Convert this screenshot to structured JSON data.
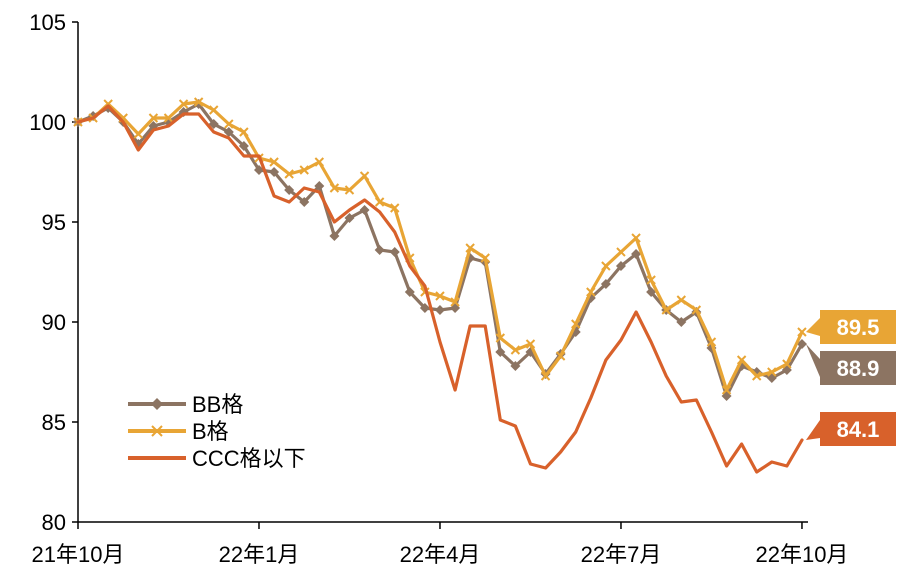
{
  "chart_data": {
    "type": "line",
    "title": "",
    "xlabel": "",
    "ylabel": "",
    "ylim": [
      80,
      105
    ],
    "yticks": [
      80,
      85,
      90,
      95,
      100,
      105
    ],
    "x_tick_labels": [
      "21年10月",
      "22年1月",
      "22年4月",
      "22年7月",
      "22年10月"
    ],
    "x_tick_pos": [
      0,
      3,
      6,
      9,
      12
    ],
    "x_range": [
      0,
      12.1
    ],
    "grid": false,
    "legend_placement": "bottom-left",
    "series": [
      {
        "name": "BB格",
        "color": "#8C7462",
        "marker": "diamond",
        "end_label": "88.9",
        "x": [
          0,
          0.25,
          0.5,
          0.75,
          1.0,
          1.25,
          1.5,
          1.75,
          2.0,
          2.25,
          2.5,
          2.75,
          3.0,
          3.25,
          3.5,
          3.75,
          4.0,
          4.25,
          4.5,
          4.75,
          5.0,
          5.25,
          5.5,
          5.75,
          6.0,
          6.25,
          6.5,
          6.75,
          7.0,
          7.25,
          7.5,
          7.75,
          8.0,
          8.25,
          8.5,
          8.75,
          9.0,
          9.25,
          9.5,
          9.75,
          10.0,
          10.25,
          10.5,
          10.75,
          11.0,
          11.25,
          11.5,
          11.75,
          12.0
        ],
        "values": [
          100,
          100.3,
          100.7,
          100,
          98.9,
          99.8,
          100,
          100.5,
          100.9,
          99.9,
          99.5,
          98.8,
          97.6,
          97.5,
          96.6,
          96.0,
          96.8,
          94.3,
          95.2,
          95.6,
          93.6,
          93.5,
          91.5,
          90.7,
          90.6,
          90.7,
          93.2,
          93.0,
          88.5,
          87.8,
          88.5,
          87.4,
          88.4,
          89.5,
          91.2,
          91.9,
          92.8,
          93.4,
          91.5,
          90.6,
          90.0,
          90.5,
          88.7,
          86.3,
          87.8,
          87.5,
          87.2,
          87.6,
          88.9
        ]
      },
      {
        "name": "B格",
        "color": "#E8A535",
        "marker": "x",
        "end_label": "89.5",
        "x": [
          0,
          0.25,
          0.5,
          0.75,
          1.0,
          1.25,
          1.5,
          1.75,
          2.0,
          2.25,
          2.5,
          2.75,
          3.0,
          3.25,
          3.5,
          3.75,
          4.0,
          4.25,
          4.5,
          4.75,
          5.0,
          5.25,
          5.5,
          5.75,
          6.0,
          6.25,
          6.5,
          6.75,
          7.0,
          7.25,
          7.5,
          7.75,
          8.0,
          8.25,
          8.5,
          8.75,
          9.0,
          9.25,
          9.5,
          9.75,
          10.0,
          10.25,
          10.5,
          10.75,
          11.0,
          11.25,
          11.5,
          11.75,
          12.0
        ],
        "values": [
          100,
          100.2,
          100.9,
          100.2,
          99.4,
          100.2,
          100.2,
          100.9,
          101.0,
          100.6,
          99.9,
          99.5,
          98.2,
          98.0,
          97.4,
          97.6,
          98.0,
          96.7,
          96.6,
          97.3,
          96.0,
          95.7,
          93.2,
          91.5,
          91.3,
          91.0,
          93.7,
          93.2,
          89.2,
          88.6,
          88.9,
          87.3,
          88.3,
          89.9,
          91.5,
          92.8,
          93.5,
          94.2,
          92.1,
          90.6,
          91.1,
          90.6,
          89.0,
          86.6,
          88.1,
          87.3,
          87.5,
          87.9,
          89.5
        ]
      },
      {
        "name": "CCC格以下",
        "color": "#D8612B",
        "marker": "none",
        "end_label": "84.1",
        "x": [
          0,
          0.25,
          0.5,
          0.75,
          1.0,
          1.25,
          1.5,
          1.75,
          2.0,
          2.25,
          2.5,
          2.75,
          3.0,
          3.25,
          3.5,
          3.75,
          4.0,
          4.25,
          4.5,
          4.75,
          5.0,
          5.25,
          5.5,
          5.75,
          6.0,
          6.25,
          6.5,
          6.75,
          7.0,
          7.25,
          7.5,
          7.75,
          8.0,
          8.25,
          8.5,
          8.75,
          9.0,
          9.25,
          9.5,
          9.75,
          10.0,
          10.25,
          10.5,
          10.75,
          11.0,
          11.25,
          11.5,
          11.75,
          12.0
        ],
        "values": [
          100,
          100.2,
          100.8,
          100.0,
          98.6,
          99.6,
          99.8,
          100.4,
          100.4,
          99.5,
          99.2,
          98.3,
          98.3,
          96.3,
          96.0,
          96.7,
          96.5,
          95.0,
          95.6,
          96.1,
          95.5,
          94.5,
          92.8,
          91.8,
          89.0,
          86.6,
          89.8,
          89.8,
          85.1,
          84.8,
          82.9,
          82.7,
          83.5,
          84.5,
          86.2,
          88.1,
          89.1,
          90.5,
          89.0,
          87.3,
          86.0,
          86.1,
          84.5,
          82.8,
          83.9,
          82.5,
          83.0,
          82.8,
          84.1
        ]
      }
    ]
  }
}
